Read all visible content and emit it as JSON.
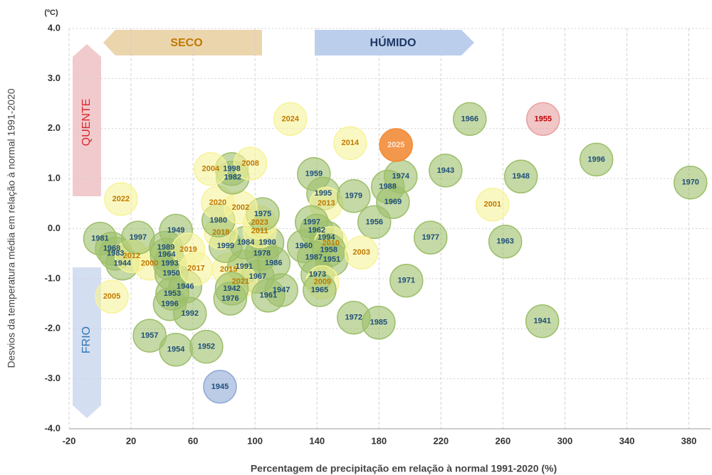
{
  "chart_data": {
    "type": "scatter",
    "unit_label": "(ºC)",
    "x_label": "Percentagem de precipitação em relação à normal 1991-2020 (%)",
    "y_label": "Desvios da temperatura média em relação à normal 1991-2020",
    "annotations": {
      "dry": "SECO",
      "wet": "HÚMIDO",
      "hot": "QUENTE",
      "cold": "FRIO"
    },
    "xlim": [
      -20,
      394
    ],
    "ylim": [
      -4,
      4
    ],
    "xticks": [
      -20,
      20,
      60,
      100,
      140,
      180,
      220,
      260,
      300,
      340,
      380
    ],
    "yticks": [
      {
        "value": -4,
        "label": "-4.0"
      },
      {
        "value": -3,
        "label": "-3.0"
      },
      {
        "value": -2,
        "label": "-2.0"
      },
      {
        "value": -1,
        "label": "-1.0"
      },
      {
        "value": 0,
        "label": "0.0"
      },
      {
        "value": 1,
        "label": "1.0"
      },
      {
        "value": 2,
        "label": "2.0"
      },
      {
        "value": 3,
        "label": "3.0"
      },
      {
        "value": 4,
        "label": "4.0"
      }
    ],
    "grid": true,
    "points": [
      {
        "label": "1981",
        "x": 0,
        "y": -0.2,
        "color": "#9dbf6a",
        "label_color": "#1f4e79"
      },
      {
        "label": "1968",
        "x": 7.6,
        "y": -0.4,
        "color": "#9dbf6a",
        "label_color": "#1f4e79"
      },
      {
        "label": "1983",
        "x": 10,
        "y": -0.5,
        "color": "#9dbf6a",
        "label_color": "#1f4e79"
      },
      {
        "label": "1944",
        "x": 14.4,
        "y": -0.7,
        "color": "#9dbf6a",
        "label_color": "#1f4e79"
      },
      {
        "label": "2012",
        "x": 20.4,
        "y": -0.55,
        "color": "#f6f39a",
        "label_color": "#c07800"
      },
      {
        "label": "2000",
        "x": 32,
        "y": -0.7,
        "color": "#f6f39a",
        "label_color": "#c07800"
      },
      {
        "label": "1997",
        "x": 24.5,
        "y": -0.18,
        "color": "#9dbf6a",
        "label_color": "#1f4e79"
      },
      {
        "label": "1989",
        "x": 42.5,
        "y": -0.38,
        "color": "#9dbf6a",
        "label_color": "#1f4e79"
      },
      {
        "label": "1964",
        "x": 43,
        "y": -0.52,
        "color": "#9dbf6a",
        "label_color": "#1f4e79"
      },
      {
        "label": "1993",
        "x": 45,
        "y": -0.7,
        "color": "#9dbf6a",
        "label_color": "#1f4e79"
      },
      {
        "label": "1950",
        "x": 46,
        "y": -0.9,
        "color": "#9dbf6a",
        "label_color": "#1f4e79"
      },
      {
        "label": "1946",
        "x": 55,
        "y": -1.16,
        "color": "#9dbf6a",
        "label_color": "#1f4e79"
      },
      {
        "label": "1953",
        "x": 46.6,
        "y": -1.3,
        "color": "#9dbf6a",
        "label_color": "#1f4e79"
      },
      {
        "label": "1996",
        "x": 45,
        "y": -1.51,
        "color": "#9dbf6a",
        "label_color": "#1f4e79"
      },
      {
        "label": "1992",
        "x": 58,
        "y": -1.7,
        "color": "#9dbf6a",
        "label_color": "#1f4e79"
      },
      {
        "label": "1957",
        "x": 32,
        "y": -2.14,
        "color": "#9dbf6a",
        "label_color": "#1f4e79"
      },
      {
        "label": "1954",
        "x": 49,
        "y": -2.42,
        "color": "#9dbf6a",
        "label_color": "#1f4e79"
      },
      {
        "label": "1952",
        "x": 68.6,
        "y": -2.36,
        "color": "#9dbf6a",
        "label_color": "#1f4e79"
      },
      {
        "label": "1945",
        "x": 77.4,
        "y": -3.16,
        "color": "#8fa9d6",
        "label_color": "#1f4e79"
      },
      {
        "label": "2005",
        "x": 7.6,
        "y": -1.36,
        "color": "#f6f39a",
        "label_color": "#c07800"
      },
      {
        "label": "2022",
        "x": 13.5,
        "y": 0.59,
        "color": "#f6f39a",
        "label_color": "#c07800"
      },
      {
        "label": "1949",
        "x": 49,
        "y": -0.04,
        "color": "#9dbf6a",
        "label_color": "#1f4e79"
      },
      {
        "label": "2019",
        "x": 57,
        "y": -0.42,
        "color": "#f6f39a",
        "label_color": "#c07800"
      },
      {
        "label": "2017",
        "x": 62,
        "y": -0.8,
        "color": "#f6f39a",
        "label_color": "#c07800"
      },
      {
        "label": "2015",
        "x": 83,
        "y": -0.82,
        "color": "#f6f39a",
        "label_color": "#c07800"
      },
      {
        "label": "1991",
        "x": 93,
        "y": -0.76,
        "color": "#9dbf6a",
        "label_color": "#1f4e79"
      },
      {
        "label": "1967",
        "x": 101.7,
        "y": -0.96,
        "color": "#9dbf6a",
        "label_color": "#1f4e79"
      },
      {
        "label": "2021",
        "x": 90.7,
        "y": -1.06,
        "color": "#f6f39a",
        "label_color": "#c07800"
      },
      {
        "label": "1942",
        "x": 85,
        "y": -1.2,
        "color": "#9dbf6a",
        "label_color": "#1f4e79"
      },
      {
        "label": "1976",
        "x": 84,
        "y": -1.4,
        "color": "#9dbf6a",
        "label_color": "#1f4e79"
      },
      {
        "label": "1961",
        "x": 108.6,
        "y": -1.34,
        "color": "#9dbf6a",
        "label_color": "#1f4e79"
      },
      {
        "label": "1947",
        "x": 117,
        "y": -1.23,
        "color": "#9dbf6a",
        "label_color": "#1f4e79"
      },
      {
        "label": "1986",
        "x": 112,
        "y": -0.69,
        "color": "#9dbf6a",
        "label_color": "#1f4e79"
      },
      {
        "label": "1978",
        "x": 104.5,
        "y": -0.5,
        "color": "#9dbf6a",
        "label_color": "#1f4e79"
      },
      {
        "label": "1990",
        "x": 108,
        "y": -0.28,
        "color": "#9dbf6a",
        "label_color": "#1f4e79"
      },
      {
        "label": "1984",
        "x": 94,
        "y": -0.28,
        "color": "#9dbf6a",
        "label_color": "#1f4e79"
      },
      {
        "label": "1999",
        "x": 81,
        "y": -0.35,
        "color": "#9dbf6a",
        "label_color": "#1f4e79"
      },
      {
        "label": "2018",
        "x": 78,
        "y": -0.08,
        "color": "#f6f39a",
        "label_color": "#c07800"
      },
      {
        "label": "2011",
        "x": 103,
        "y": -0.05,
        "color": "#f6f39a",
        "label_color": "#c07800"
      },
      {
        "label": "2023",
        "x": 103,
        "y": 0.12,
        "color": "#f6f39a",
        "label_color": "#c07800"
      },
      {
        "label": "1975",
        "x": 105,
        "y": 0.29,
        "color": "#9dbf6a",
        "label_color": "#1f4e79"
      },
      {
        "label": "1980",
        "x": 76.4,
        "y": 0.16,
        "color": "#9dbf6a",
        "label_color": "#1f4e79"
      },
      {
        "label": "2002",
        "x": 90.7,
        "y": 0.42,
        "color": "#f6f39a",
        "label_color": "#c07800"
      },
      {
        "label": "2020",
        "x": 76,
        "y": 0.52,
        "color": "#f6f39a",
        "label_color": "#c07800"
      },
      {
        "label": "1982",
        "x": 85.6,
        "y": 1.02,
        "color": "#9dbf6a",
        "label_color": "#1f4e79"
      },
      {
        "label": "1998",
        "x": 85,
        "y": 1.19,
        "color": "#9dbf6a",
        "label_color": "#1f4e79"
      },
      {
        "label": "2004",
        "x": 71.4,
        "y": 1.19,
        "color": "#f6f39a",
        "label_color": "#c07800"
      },
      {
        "label": "2008",
        "x": 97,
        "y": 1.3,
        "color": "#f6f39a",
        "label_color": "#c07800"
      },
      {
        "label": "2024",
        "x": 122.8,
        "y": 2.19,
        "color": "#f6f39a",
        "label_color": "#c07800"
      },
      {
        "label": "2014",
        "x": 161.4,
        "y": 1.71,
        "color": "#f6f39a",
        "label_color": "#c07800"
      },
      {
        "label": "1959",
        "x": 138,
        "y": 1.09,
        "color": "#9dbf6a",
        "label_color": "#1f4e79"
      },
      {
        "label": "1995",
        "x": 144,
        "y": 0.7,
        "color": "#9dbf6a",
        "label_color": "#1f4e79"
      },
      {
        "label": "2013",
        "x": 146,
        "y": 0.5,
        "color": "#f6f39a",
        "label_color": "#c07800"
      },
      {
        "label": "1979",
        "x": 163.7,
        "y": 0.65,
        "color": "#9dbf6a",
        "label_color": "#1f4e79"
      },
      {
        "label": "1988",
        "x": 185.7,
        "y": 0.84,
        "color": "#9dbf6a",
        "label_color": "#1f4e79"
      },
      {
        "label": "1974",
        "x": 194,
        "y": 1.04,
        "color": "#9dbf6a",
        "label_color": "#1f4e79"
      },
      {
        "label": "1969",
        "x": 189,
        "y": 0.53,
        "color": "#9dbf6a",
        "label_color": "#1f4e79"
      },
      {
        "label": "1956",
        "x": 177,
        "y": 0.13,
        "color": "#9dbf6a",
        "label_color": "#1f4e79"
      },
      {
        "label": "1997",
        "x": 136.6,
        "y": 0.13,
        "color": "#9dbf6a",
        "label_color": "#1f4e79"
      },
      {
        "label": "1962",
        "x": 139.8,
        "y": -0.04,
        "color": "#9dbf6a",
        "label_color": "#1f4e79"
      },
      {
        "label": "1994",
        "x": 146,
        "y": -0.18,
        "color": "#9dbf6a",
        "label_color": "#1f4e79"
      },
      {
        "label": "1960",
        "x": 131.5,
        "y": -0.35,
        "color": "#9dbf6a",
        "label_color": "#1f4e79"
      },
      {
        "label": "2010",
        "x": 149,
        "y": -0.29,
        "color": "#f6f39a",
        "label_color": "#c07800"
      },
      {
        "label": "1958",
        "x": 147.6,
        "y": -0.43,
        "color": "#9dbf6a",
        "label_color": "#1f4e79"
      },
      {
        "label": "1987",
        "x": 138,
        "y": -0.58,
        "color": "#9dbf6a",
        "label_color": "#1f4e79"
      },
      {
        "label": "1951",
        "x": 149.5,
        "y": -0.62,
        "color": "#9dbf6a",
        "label_color": "#1f4e79"
      },
      {
        "label": "2003",
        "x": 168.7,
        "y": -0.48,
        "color": "#f6f39a",
        "label_color": "#c07800"
      },
      {
        "label": "1973",
        "x": 140.3,
        "y": -0.92,
        "color": "#9dbf6a",
        "label_color": "#1f4e79"
      },
      {
        "label": "2009",
        "x": 143.5,
        "y": -1.07,
        "color": "#f6f39a",
        "label_color": "#c07800"
      },
      {
        "label": "1965",
        "x": 141.7,
        "y": -1.23,
        "color": "#9dbf6a",
        "label_color": "#1f4e79"
      },
      {
        "label": "1972",
        "x": 163.7,
        "y": -1.78,
        "color": "#9dbf6a",
        "label_color": "#1f4e79"
      },
      {
        "label": "1985",
        "x": 179.8,
        "y": -1.88,
        "color": "#9dbf6a",
        "label_color": "#1f4e79"
      },
      {
        "label": "1971",
        "x": 197.7,
        "y": -1.04,
        "color": "#9dbf6a",
        "label_color": "#1f4e79"
      },
      {
        "label": "1977",
        "x": 213.3,
        "y": -0.18,
        "color": "#9dbf6a",
        "label_color": "#1f4e79"
      },
      {
        "label": "1943",
        "x": 223,
        "y": 1.16,
        "color": "#9dbf6a",
        "label_color": "#1f4e79"
      },
      {
        "label": "1966",
        "x": 238.6,
        "y": 2.19,
        "color": "#9dbf6a",
        "label_color": "#1f4e79"
      },
      {
        "label": "1948",
        "x": 271.6,
        "y": 1.04,
        "color": "#9dbf6a",
        "label_color": "#1f4e79"
      },
      {
        "label": "2001",
        "x": 253.3,
        "y": 0.48,
        "color": "#f6f39a",
        "label_color": "#c07800"
      },
      {
        "label": "1963",
        "x": 261.5,
        "y": -0.26,
        "color": "#9dbf6a",
        "label_color": "#1f4e79"
      },
      {
        "label": "1955",
        "x": 285.9,
        "y": 2.19,
        "color": "#e8a0a0",
        "label_color": "#c00000"
      },
      {
        "label": "1996",
        "x": 320.3,
        "y": 1.38,
        "color": "#9dbf6a",
        "label_color": "#1f4e79"
      },
      {
        "label": "1970",
        "x": 381,
        "y": 0.92,
        "color": "#9dbf6a",
        "label_color": "#1f4e79"
      },
      {
        "label": "1941",
        "x": 285.4,
        "y": -1.85,
        "color": "#9dbf6a",
        "label_color": "#1f4e79"
      },
      {
        "label": "2025",
        "x": 191,
        "y": 1.67,
        "color": "#f28c38",
        "label_color": "#fde9d9"
      }
    ]
  }
}
